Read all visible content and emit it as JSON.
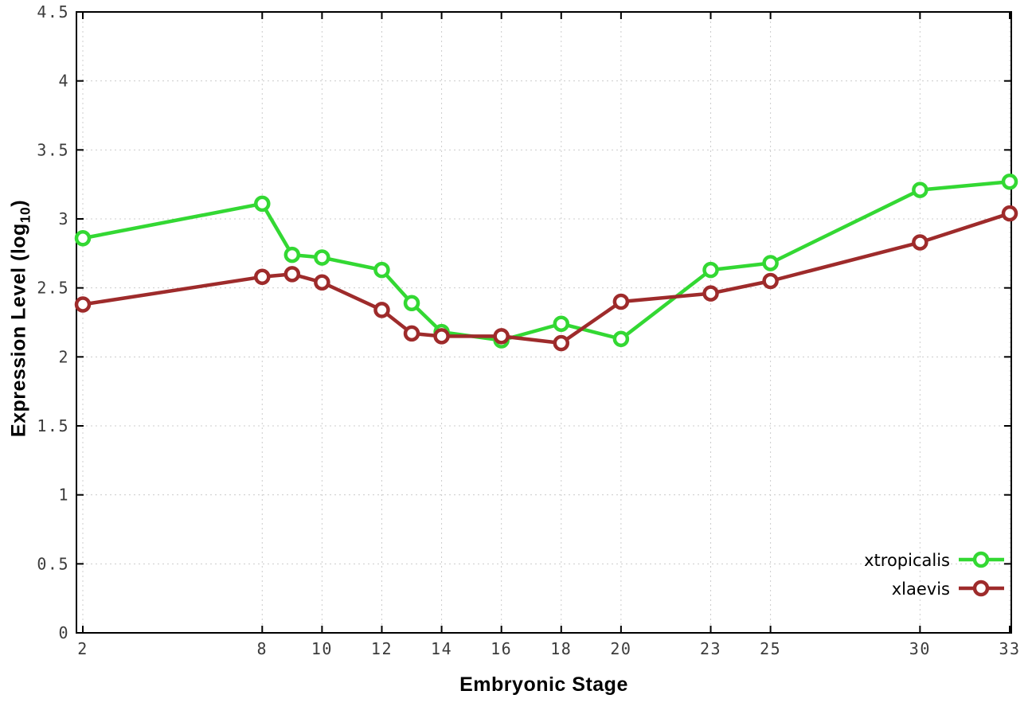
{
  "chart_data": {
    "type": "line",
    "title": "",
    "xlabel": "Embryonic Stage",
    "ylabel": "Expression Level (log10)",
    "x": [
      2,
      8,
      9,
      10,
      12,
      13,
      14,
      16,
      18,
      20,
      23,
      25,
      30,
      33
    ],
    "series": [
      {
        "name": "xtropicalis",
        "color": "#33d833",
        "values": [
          2.86,
          3.11,
          2.74,
          2.72,
          2.63,
          2.39,
          2.18,
          2.12,
          2.24,
          2.13,
          2.63,
          2.68,
          3.21,
          3.27
        ]
      },
      {
        "name": "xlaevis",
        "color": "#9e2b2b",
        "values": [
          2.38,
          2.58,
          2.6,
          2.54,
          2.34,
          2.17,
          2.15,
          2.15,
          2.1,
          2.4,
          2.46,
          2.55,
          2.83,
          3.04
        ]
      }
    ],
    "xlim": [
      2,
      33
    ],
    "ylim": [
      0,
      4.5
    ],
    "x_ticks": [
      2,
      8,
      10,
      12,
      14,
      16,
      18,
      20,
      23,
      25,
      30,
      33
    ],
    "y_ticks": [
      0,
      0.5,
      1,
      1.5,
      2,
      2.5,
      3,
      3.5,
      4,
      4.5
    ],
    "y_tick_labels": [
      "0",
      "0.5",
      "1",
      "1.5",
      "2",
      "2.5",
      "3",
      "3.5",
      "4",
      "4.5"
    ],
    "grid": true,
    "legend_position": "bottom-right",
    "marker": "open-circle"
  },
  "labels": {
    "xlabel": "Embryonic Stage",
    "ylabel_main": "Expression Level (log",
    "ylabel_sub": "10",
    "ylabel_end": ")"
  },
  "colors": {
    "background": "#ffffff",
    "axis": "#000000",
    "grid": "#cccccc",
    "tick_text": "#3c3c3c",
    "legend_text": "#000000"
  }
}
